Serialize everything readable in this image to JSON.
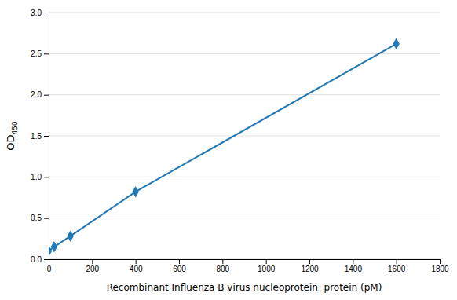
{
  "chart_data": {
    "type": "line",
    "xlabel": "Recombinant Influenza B virus nucleoprotein  protein (pM)",
    "ylabel": "OD450",
    "x": [
      0,
      25,
      100,
      400,
      1600
    ],
    "values": [
      0.1,
      0.15,
      0.28,
      0.82,
      2.62
    ],
    "marker": "diamond",
    "xlim": [
      0,
      1800
    ],
    "ylim": [
      0,
      3
    ],
    "xticks": [
      0,
      200,
      400,
      600,
      800,
      1000,
      1200,
      1400,
      1600,
      1800
    ],
    "yticks": [
      {
        "value": 0,
        "label": "0.0"
      },
      {
        "value": 0.5,
        "label": "0.5"
      },
      {
        "value": 1,
        "label": "1.0"
      },
      {
        "value": 1.5,
        "label": "1.5"
      },
      {
        "value": 2,
        "label": "2.0"
      },
      {
        "value": 2.5,
        "label": "2.5"
      },
      {
        "value": 3,
        "label": "3.0"
      }
    ],
    "grid": true
  }
}
